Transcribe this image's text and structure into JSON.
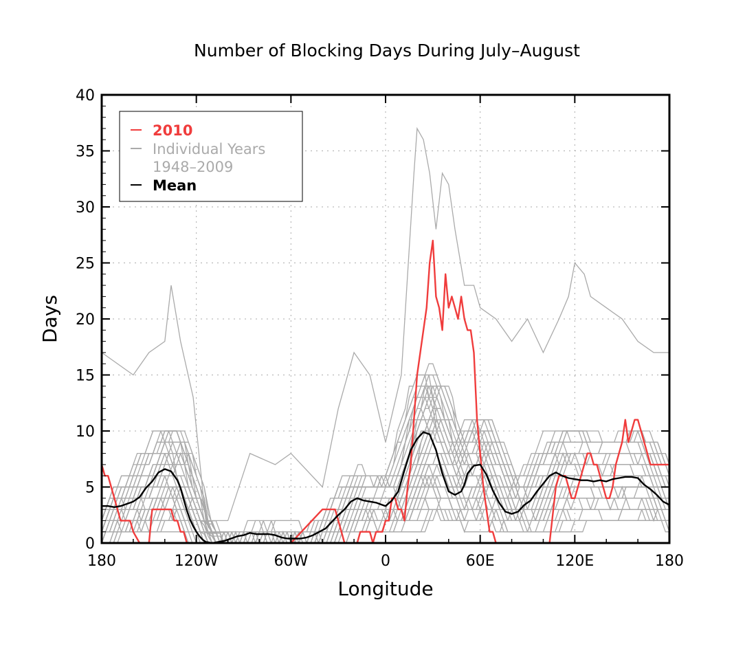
{
  "chart_data": {
    "type": "line",
    "title": "Number of Blocking Days During July–August",
    "xlabel": "Longitude",
    "ylabel": "Days",
    "xlim": [
      -180,
      180
    ],
    "ylim": [
      0,
      40
    ],
    "x_ticks": [
      {
        "value": -180,
        "label": "180"
      },
      {
        "value": -120,
        "label": "120W"
      },
      {
        "value": -60,
        "label": "60W"
      },
      {
        "value": 0,
        "label": "0"
      },
      {
        "value": 60,
        "label": "60E"
      },
      {
        "value": 120,
        "label": "120E"
      },
      {
        "value": 180,
        "label": "180"
      }
    ],
    "y_ticks": [
      0,
      5,
      10,
      15,
      20,
      25,
      30,
      35,
      40
    ],
    "grid": true,
    "legend_position": "top-left",
    "legend": [
      {
        "label": "2010",
        "color": "#f03c3c"
      },
      {
        "label": "Individual Years",
        "label2": "1948–2009",
        "color": "#aaaaaa"
      },
      {
        "label": "Mean",
        "color": "#000000"
      }
    ],
    "series": [
      {
        "name": "2010",
        "color": "#f03c3c",
        "x": [
          -180,
          -178,
          -176,
          -174,
          -172,
          -170,
          -168,
          -166,
          -164,
          -162,
          -160,
          -156,
          -152,
          -150,
          -148,
          -146,
          -144,
          -140,
          -136,
          -134,
          -132,
          -130,
          -128,
          -126,
          -124,
          -122,
          -120,
          -60,
          -40,
          -36,
          -32,
          -30,
          -28,
          -26,
          -24,
          -22,
          -20,
          -18,
          -16,
          -14,
          -12,
          -10,
          -8,
          -6,
          -4,
          -2,
          0,
          2,
          4,
          6,
          8,
          10,
          12,
          14,
          16,
          18,
          20,
          22,
          24,
          26,
          28,
          30,
          32,
          34,
          36,
          38,
          40,
          42,
          44,
          46,
          48,
          50,
          52,
          54,
          56,
          58,
          60,
          62,
          64,
          66,
          68,
          70,
          72,
          74,
          76,
          80,
          100,
          104,
          108,
          110,
          112,
          114,
          116,
          118,
          120,
          122,
          124,
          126,
          128,
          130,
          132,
          134,
          136,
          138,
          140,
          142,
          144,
          146,
          148,
          150,
          152,
          154,
          156,
          158,
          160,
          162,
          164,
          166,
          168,
          170,
          172,
          174,
          176,
          178,
          180
        ],
        "values": [
          7,
          6,
          6,
          5,
          4,
          3,
          2,
          2,
          2,
          2,
          1,
          0,
          0,
          0,
          3,
          3,
          3,
          3,
          3,
          2,
          2,
          1,
          1,
          0,
          0,
          0,
          0,
          0,
          3,
          3,
          3,
          2,
          1,
          0,
          0,
          0,
          0,
          0,
          1,
          1,
          1,
          1,
          0,
          1,
          1,
          1,
          2,
          2,
          4,
          4,
          3,
          3,
          2,
          5,
          7,
          11,
          15,
          17,
          19,
          21,
          25,
          27,
          22,
          21,
          19,
          24,
          21,
          22,
          21,
          20,
          22,
          20,
          19,
          19,
          17,
          11,
          8,
          5,
          3,
          1,
          1,
          0,
          0,
          0,
          0,
          0,
          0,
          0,
          5,
          6,
          6,
          6,
          5,
          4,
          4,
          5,
          6,
          7,
          8,
          8,
          7,
          7,
          6,
          5,
          4,
          4,
          5,
          7,
          8,
          9,
          11,
          9,
          10,
          11,
          11,
          10,
          9,
          8,
          7,
          7,
          7,
          7,
          7,
          7,
          7
        ]
      },
      {
        "name": "Mean",
        "color": "#000000",
        "x": [
          -180,
          -176,
          -172,
          -168,
          -164,
          -160,
          -156,
          -152,
          -148,
          -144,
          -140,
          -136,
          -132,
          -130,
          -128,
          -126,
          -124,
          -122,
          -120,
          -118,
          -116,
          -114,
          -112,
          -110,
          -106,
          -102,
          -98,
          -94,
          -90,
          -86,
          -82,
          -78,
          -74,
          -70,
          -66,
          -62,
          -58,
          -54,
          -50,
          -46,
          -42,
          -38,
          -34,
          -30,
          -26,
          -22,
          -18,
          -14,
          -10,
          -6,
          -2,
          0,
          4,
          8,
          12,
          16,
          20,
          24,
          28,
          32,
          36,
          40,
          44,
          48,
          50,
          52,
          56,
          60,
          64,
          68,
          72,
          76,
          80,
          84,
          88,
          92,
          96,
          100,
          104,
          108,
          112,
          116,
          120,
          124,
          128,
          132,
          136,
          140,
          144,
          148,
          152,
          156,
          160,
          164,
          168,
          172,
          176,
          180
        ],
        "values": [
          3.3,
          3.3,
          3.2,
          3.3,
          3.5,
          3.7,
          4.1,
          4.9,
          5.5,
          6.3,
          6.6,
          6.4,
          5.6,
          4.9,
          3.9,
          2.9,
          2.1,
          1.5,
          1.0,
          0.6,
          0.3,
          0.1,
          0.05,
          0.0,
          0.1,
          0.2,
          0.4,
          0.6,
          0.7,
          0.9,
          0.8,
          0.8,
          0.8,
          0.7,
          0.5,
          0.4,
          0.4,
          0.4,
          0.5,
          0.7,
          1.0,
          1.3,
          1.9,
          2.5,
          3.0,
          3.7,
          4.0,
          3.8,
          3.7,
          3.6,
          3.4,
          3.3,
          3.8,
          4.6,
          6.5,
          8.3,
          9.3,
          9.9,
          9.7,
          8.3,
          6.2,
          4.6,
          4.3,
          4.6,
          5.2,
          6.2,
          6.9,
          7.0,
          6.1,
          4.7,
          3.6,
          2.8,
          2.6,
          2.8,
          3.4,
          3.8,
          4.6,
          5.3,
          6.0,
          6.3,
          6.0,
          5.8,
          5.7,
          5.6,
          5.6,
          5.5,
          5.6,
          5.5,
          5.7,
          5.8,
          5.9,
          5.9,
          5.8,
          5.2,
          4.8,
          4.3,
          3.7,
          3.4
        ]
      }
    ],
    "individual_years": {
      "label": "Individual Years 1948–2009",
      "color": "#aaaaaa",
      "count": 62,
      "envelope": {
        "x": [
          -180,
          -160,
          -150,
          -140,
          -136,
          -130,
          -122,
          -114,
          -100,
          -86,
          -70,
          -60,
          -40,
          -30,
          -20,
          -10,
          0,
          10,
          18,
          20,
          24,
          28,
          32,
          36,
          40,
          44,
          50,
          56,
          60,
          70,
          80,
          90,
          100,
          110,
          116,
          120,
          126,
          130,
          140,
          150,
          160,
          170,
          180
        ],
        "max": [
          17,
          15,
          17,
          18,
          23,
          18,
          13,
          2,
          2,
          8,
          7,
          8,
          5,
          12,
          17,
          15,
          9,
          15,
          33,
          37,
          36,
          33,
          28,
          33,
          32,
          28,
          23,
          23,
          21,
          20,
          18,
          20,
          17,
          20,
          22,
          25,
          24,
          22,
          21,
          20,
          18,
          17,
          17
        ]
      }
    }
  }
}
